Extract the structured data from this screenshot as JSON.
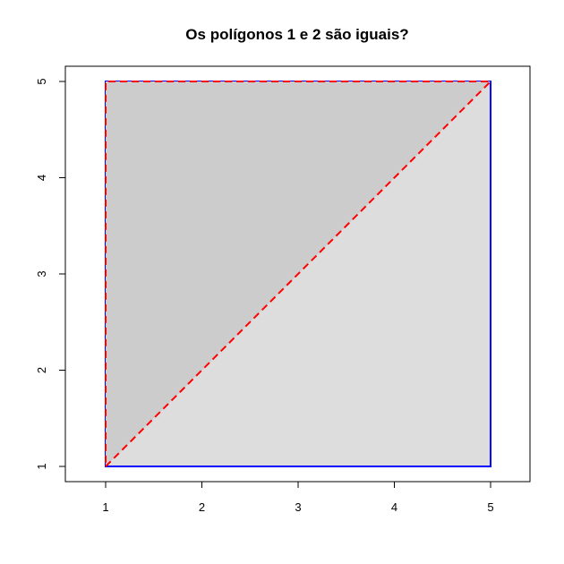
{
  "chart_data": {
    "type": "area",
    "title": "Os polígonos 1 e 2 são iguais?",
    "xlabel": "",
    "ylabel": "",
    "xlim": [
      1,
      5
    ],
    "ylim": [
      1,
      5
    ],
    "x_ticks": [
      1,
      2,
      3,
      4,
      5
    ],
    "y_ticks": [
      1,
      2,
      3,
      4,
      5
    ],
    "grid": false,
    "legend": "none",
    "polygons": [
      {
        "points": [
          [
            1,
            1
          ],
          [
            5,
            1
          ],
          [
            5,
            5
          ],
          [
            1,
            5
          ]
        ],
        "fill": "#dddddd",
        "stroke": "#0000ff",
        "line_style": "solid"
      },
      {
        "points": [
          [
            1,
            1
          ],
          [
            5,
            5
          ],
          [
            1,
            5
          ]
        ],
        "fill": "#cccccc",
        "stroke": "#ff0000",
        "line_style": "dashed"
      }
    ]
  }
}
